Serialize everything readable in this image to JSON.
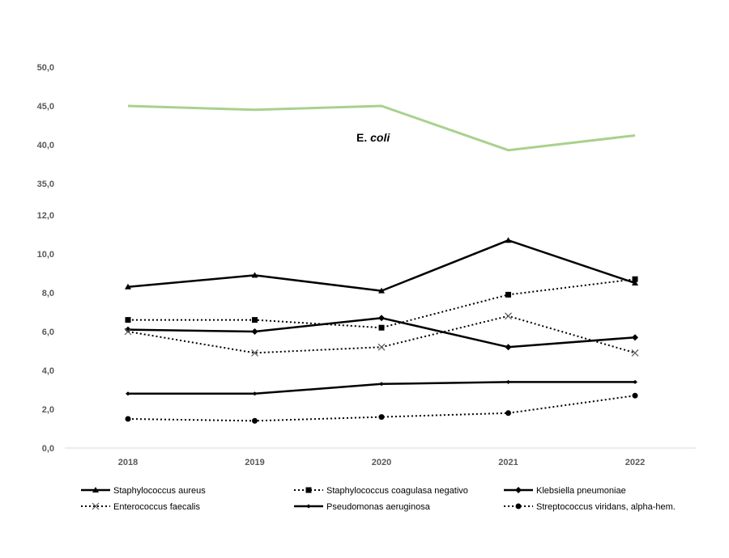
{
  "chart_data": {
    "type": "line",
    "title": "",
    "xlabel": "",
    "ylabel": "",
    "categories": [
      "2018",
      "2019",
      "2020",
      "2021",
      "2022"
    ],
    "y_axis_note": "broken axis: lower segment 0,0–12,0; upper segment 35,0–50,0",
    "y_ticks_lower": [
      "0,0",
      "2,0",
      "4,0",
      "6,0",
      "8,0",
      "10,0",
      "12,0"
    ],
    "y_ticks_upper": [
      "35,0",
      "40,0",
      "45,0",
      "50,0"
    ],
    "ylim_lower": [
      0,
      12
    ],
    "ylim_upper": [
      35,
      50
    ],
    "grid": false,
    "legend_position": "bottom",
    "annotation": {
      "prefix": "E. ",
      "italic": "coli"
    },
    "upper_series": [
      {
        "key": "ecoli",
        "values": [
          45.0,
          44.5,
          45.0,
          39.3,
          41.2
        ],
        "color": "#a9d18e",
        "dash": "solid",
        "marker": "none"
      }
    ],
    "series": [
      {
        "key": "s_aureus",
        "name": "Staphylococcus aureus",
        "values": [
          8.3,
          8.9,
          8.1,
          10.7,
          8.5
        ],
        "color": "#000000",
        "dash": "solid",
        "marker": "triangle"
      },
      {
        "key": "s_coag",
        "name": "Staphylococcus coagulasa negativo",
        "values": [
          6.6,
          6.6,
          6.2,
          7.9,
          8.7
        ],
        "color": "#000000",
        "dash": "dotted",
        "marker": "square"
      },
      {
        "key": "k_pneu",
        "name": "Klebsiella pneumoniae",
        "values": [
          6.1,
          6.0,
          6.7,
          5.2,
          5.7
        ],
        "color": "#000000",
        "dash": "solid",
        "marker": "diamond"
      },
      {
        "key": "e_faec",
        "name": "Enterococcus faecalis",
        "values": [
          6.0,
          4.9,
          5.2,
          6.8,
          4.9
        ],
        "color": "#000000",
        "dash": "dotted",
        "marker": "x"
      },
      {
        "key": "p_aer",
        "name": "Pseudomonas aeruginosa",
        "values": [
          2.8,
          2.8,
          3.3,
          3.4,
          3.4
        ],
        "color": "#000000",
        "dash": "solid",
        "marker": "plus"
      },
      {
        "key": "s_viri",
        "name": "Streptococcus viridans, alpha-hem.",
        "values": [
          1.5,
          1.4,
          1.6,
          1.8,
          2.7
        ],
        "color": "#000000",
        "dash": "dotted",
        "marker": "circle"
      }
    ]
  }
}
